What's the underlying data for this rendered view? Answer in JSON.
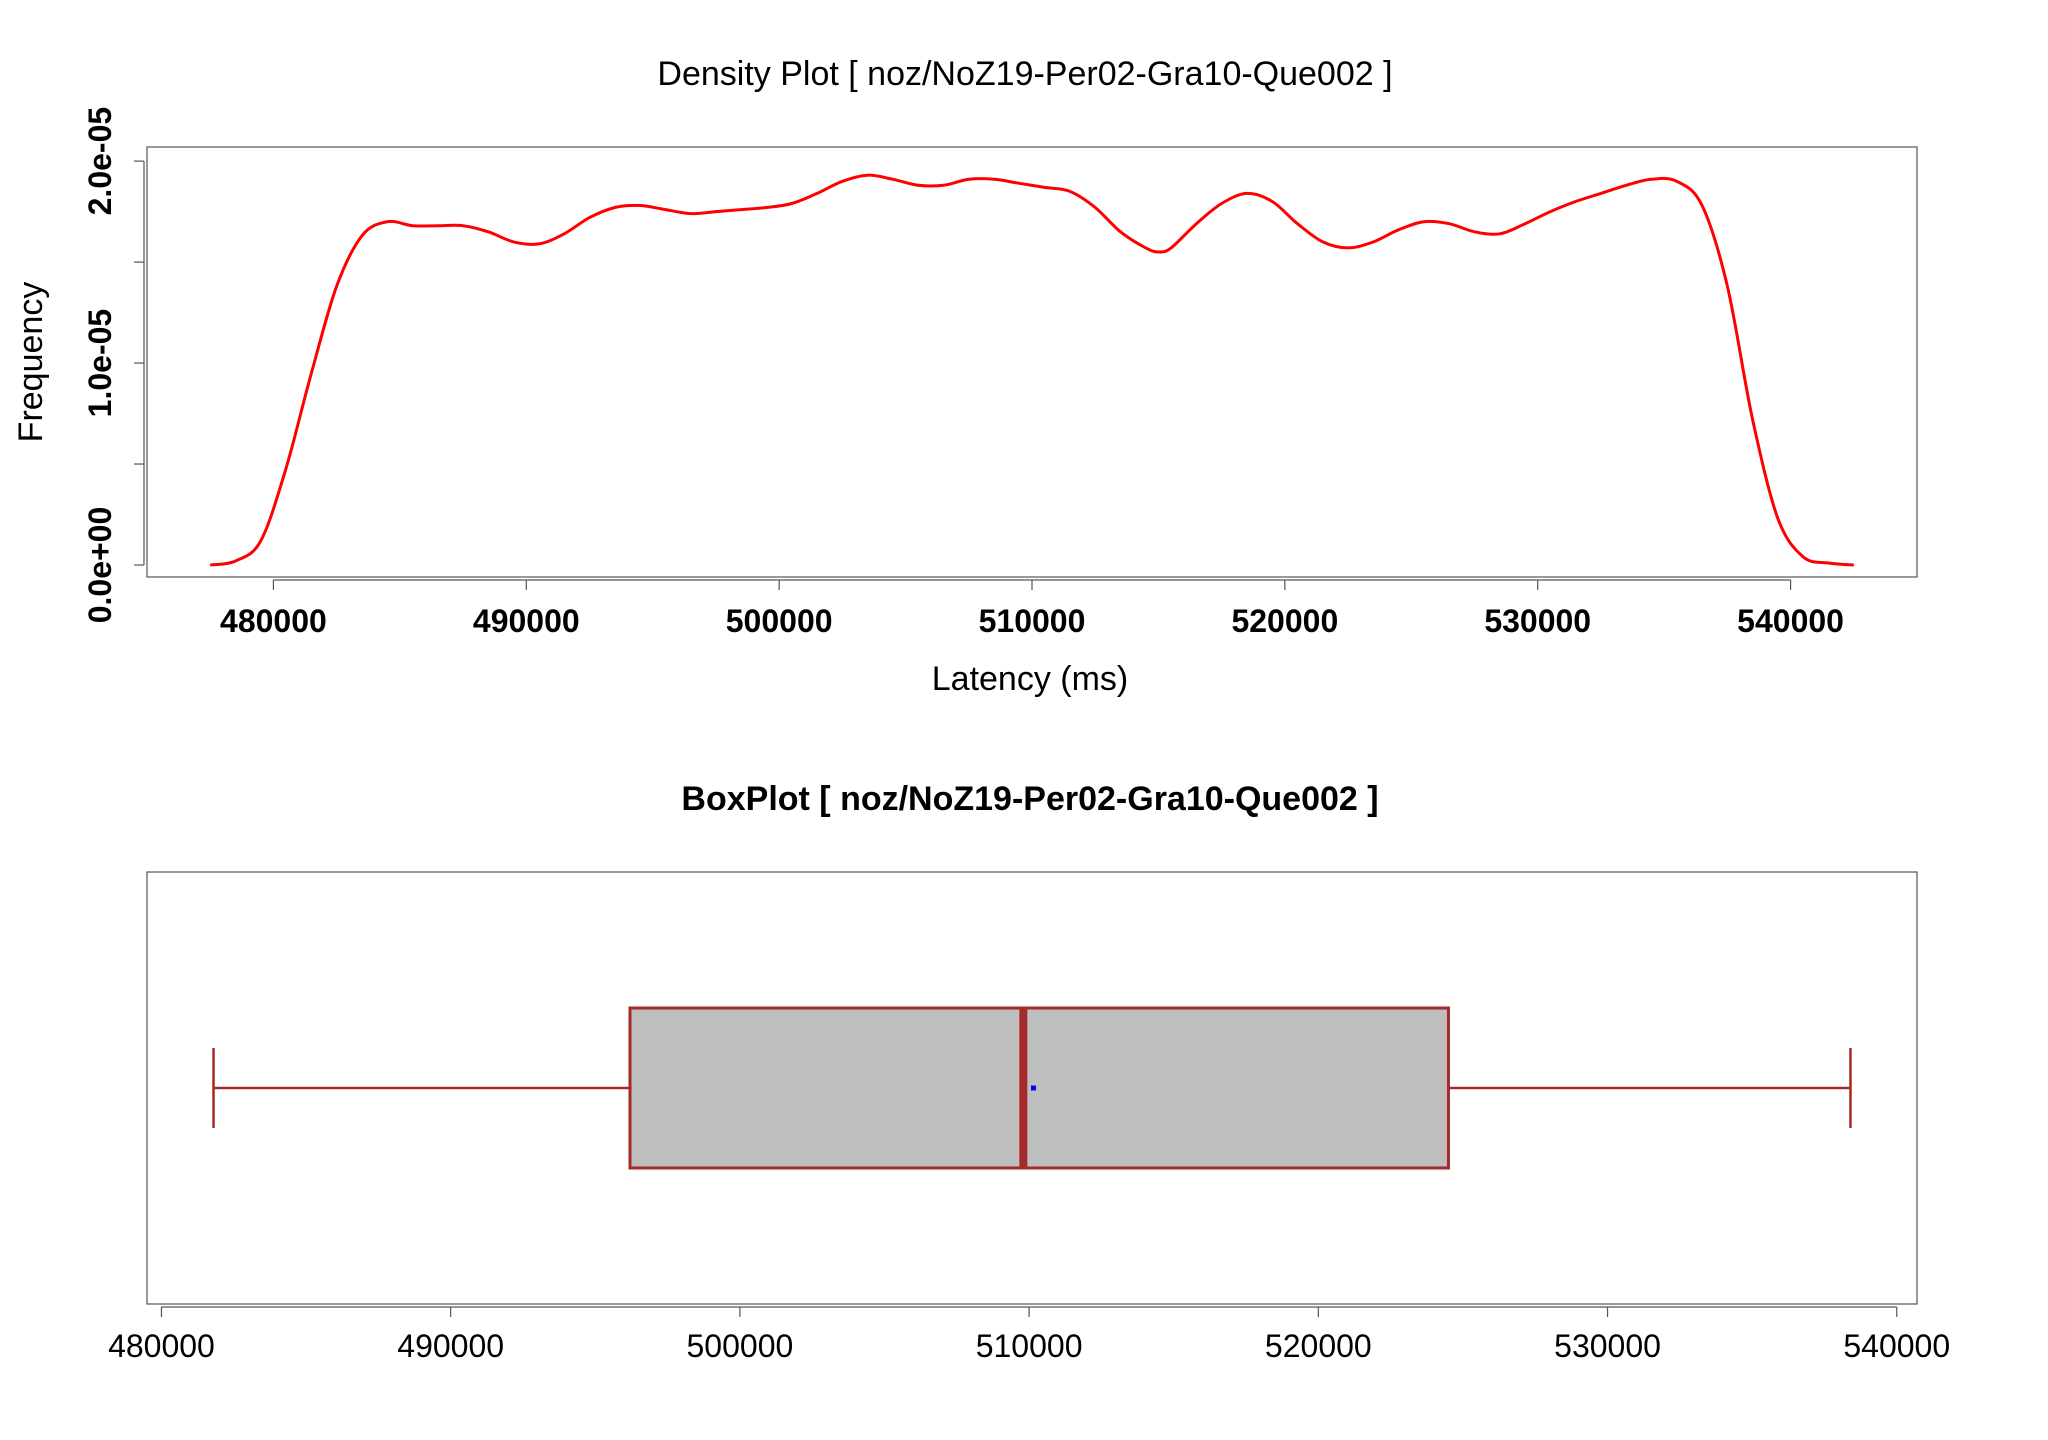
{
  "chart_data": [
    {
      "type": "line",
      "title": "Density Plot [ noz/NoZ19-Per02-Gra10-Que002 ]",
      "xlabel": "Latency (ms)",
      "ylabel": "Frequency",
      "xlim": [
        475000,
        545000
      ],
      "ylim": [
        0,
        2.05e-05
      ],
      "x_ticks": [
        480000,
        490000,
        500000,
        510000,
        520000,
        530000,
        540000
      ],
      "x_tick_labels": [
        "480000",
        "490000",
        "500000",
        "510000",
        "520000",
        "530000",
        "540000"
      ],
      "y_ticks": [
        0,
        5e-06,
        1e-05,
        1.5e-05,
        2e-05
      ],
      "y_tick_labels": [
        "0.0e+00",
        "",
        "1.0e-05",
        "",
        "2.0e-05"
      ],
      "grid": false,
      "series": [
        {
          "color": "#ff0000",
          "x": [
            477500,
            478500,
            479500,
            480500,
            481500,
            482500,
            483500,
            484500,
            485500,
            486500,
            487500,
            488500,
            489500,
            490500,
            491500,
            492500,
            493500,
            494500,
            495500,
            496500,
            497500,
            498500,
            499500,
            500500,
            501500,
            502500,
            503500,
            504500,
            505500,
            506500,
            507500,
            508500,
            509500,
            510500,
            511500,
            512500,
            513500,
            514500,
            515000,
            515500,
            516500,
            517500,
            518500,
            519500,
            520500,
            521500,
            522500,
            523500,
            524500,
            525500,
            526500,
            527500,
            528500,
            529500,
            530500,
            531500,
            532500,
            533500,
            534500,
            535500,
            536500,
            537500,
            538500,
            539500,
            540500,
            541500,
            542500
          ],
          "y": [
            0.0,
            2e-07,
            1.2e-06,
            4.8e-06,
            9.5e-06,
            1.38e-05,
            1.63e-05,
            1.7e-05,
            1.68e-05,
            1.68e-05,
            1.68e-05,
            1.65e-05,
            1.6e-05,
            1.59e-05,
            1.64e-05,
            1.72e-05,
            1.77e-05,
            1.78e-05,
            1.76e-05,
            1.74e-05,
            1.75e-05,
            1.76e-05,
            1.77e-05,
            1.79e-05,
            1.84e-05,
            1.9e-05,
            1.93e-05,
            1.91e-05,
            1.88e-05,
            1.88e-05,
            1.91e-05,
            1.91e-05,
            1.89e-05,
            1.87e-05,
            1.85e-05,
            1.77e-05,
            1.65e-05,
            1.57e-05,
            1.55e-05,
            1.57e-05,
            1.69e-05,
            1.79e-05,
            1.84e-05,
            1.8e-05,
            1.69e-05,
            1.6e-05,
            1.57e-05,
            1.6e-05,
            1.66e-05,
            1.7e-05,
            1.69e-05,
            1.65e-05,
            1.64e-05,
            1.69e-05,
            1.75e-05,
            1.8e-05,
            1.84e-05,
            1.88e-05,
            1.91e-05,
            1.9e-05,
            1.78e-05,
            1.38e-05,
            7.2e-06,
            2.3e-06,
            4e-07,
            1e-07,
            0.0
          ]
        }
      ]
    },
    {
      "type": "box",
      "title": "BoxPlot [ noz/NoZ19-Per02-Gra10-Que002 ]",
      "xlim": [
        479500,
        540700
      ],
      "x_ticks": [
        480000,
        490000,
        500000,
        510000,
        520000,
        530000,
        540000
      ],
      "x_tick_labels": [
        "480000",
        "490000",
        "500000",
        "510000",
        "520000",
        "530000",
        "540000"
      ],
      "whisker_low": 481800,
      "q1": 496200,
      "median": 509800,
      "q3": 524500,
      "whisker_high": 538400,
      "mean": 510150,
      "box_fill": "#bebebe",
      "box_color": "#a52a2a",
      "mean_color": "#0000ff"
    }
  ]
}
